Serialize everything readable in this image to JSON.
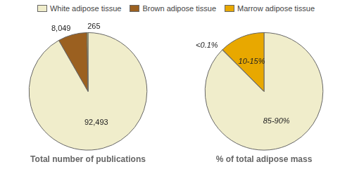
{
  "chart_data": [
    {
      "type": "pie",
      "title": "Total number of publications",
      "values": [
        92493,
        8049,
        265
      ],
      "value_labels": [
        "92,493",
        "8,049",
        "265"
      ],
      "colors": [
        "#f0edcb",
        "#9B6020",
        "#e8e060"
      ],
      "data_labels": true,
      "legend": "top",
      "series": [
        {
          "name": "White adipose tissue",
          "color": "#f0edcb"
        },
        {
          "name": "Brown adipose tissue",
          "color": "#9B6020"
        },
        {
          "name": "Marrow adipose tissue",
          "color": "#e8a800"
        }
      ]
    },
    {
      "type": "pie",
      "title": "% of total adipose mass",
      "values": [
        87.5,
        0.1,
        12.4
      ],
      "value_labels": [
        "85-90%",
        "<0.1%",
        "10-15%"
      ],
      "colors": [
        "#f0edcb",
        "#cccccc",
        "#e8a800"
      ],
      "data_labels": true
    }
  ]
}
